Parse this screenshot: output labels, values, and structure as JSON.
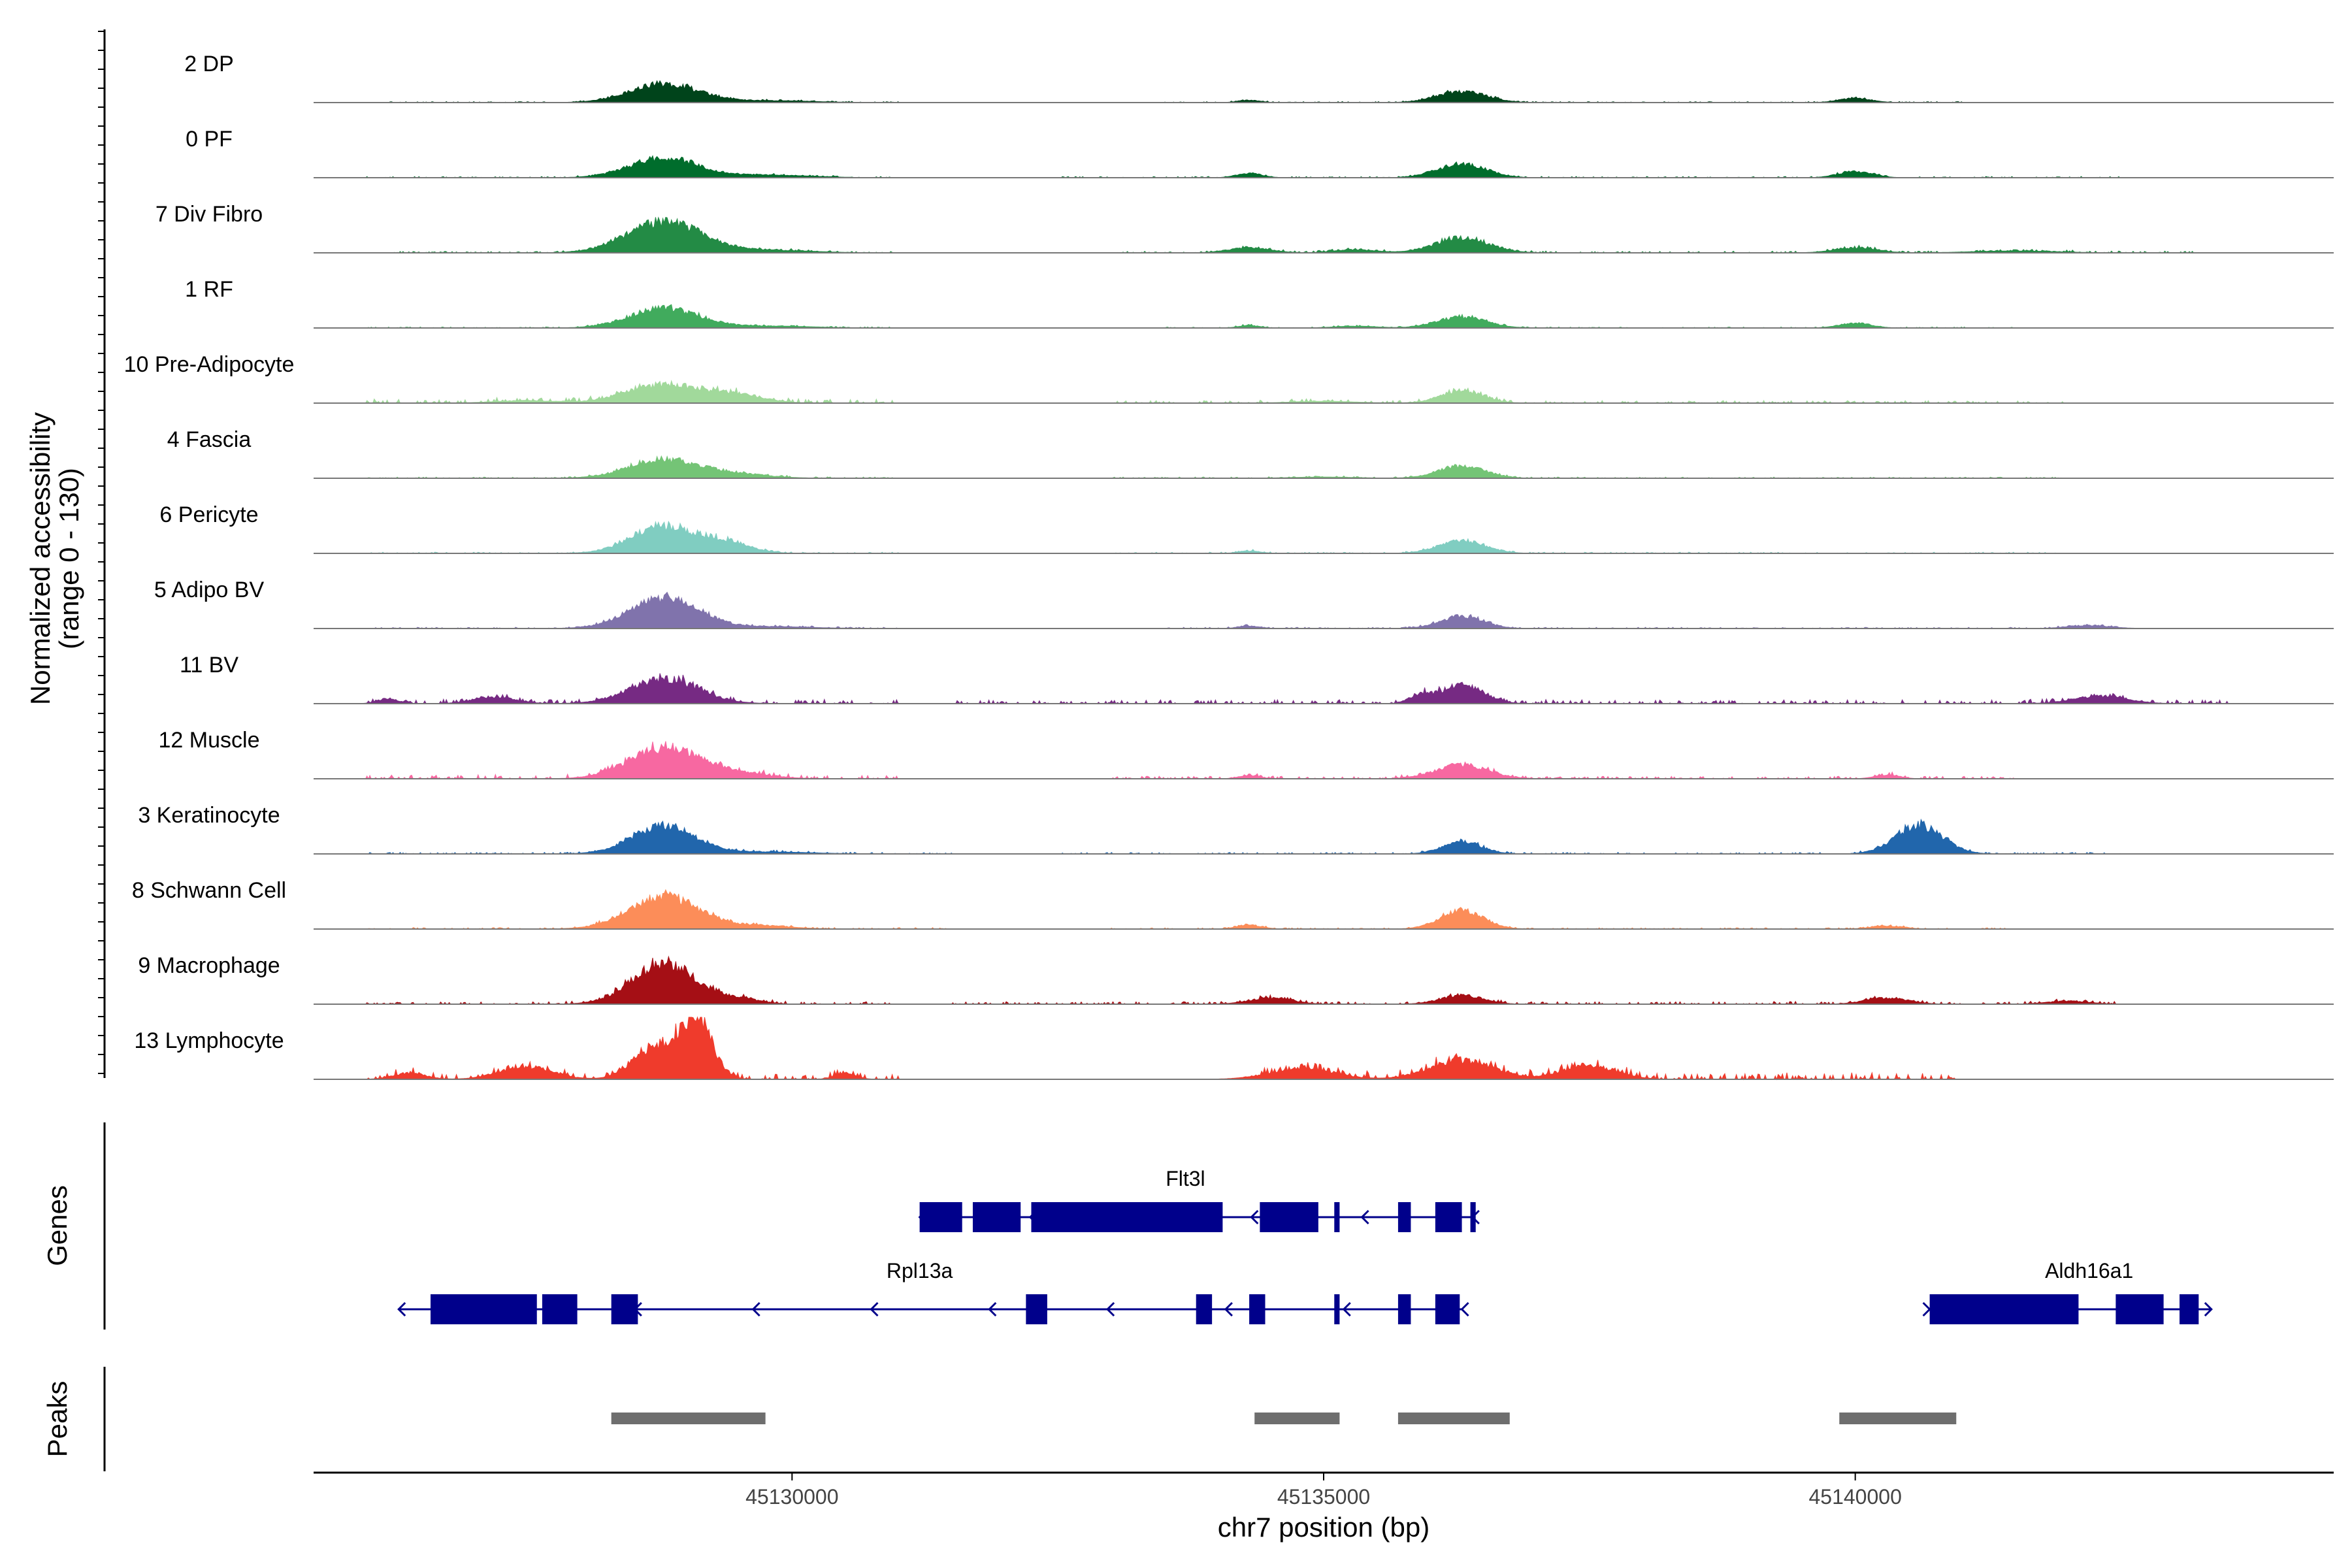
{
  "chart_data": {
    "type": "genome-browser-coverage",
    "region": {
      "chrom": "chr7",
      "start": 45125500,
      "end": 45144500
    },
    "xlabel": "chr7 position (bp)",
    "x_ticks": [
      45130000,
      45135000,
      45140000
    ],
    "ylabel_line1": "Normalized accessibility",
    "ylabel_line2": "(range 0 - 130)",
    "y_range": [
      0,
      130
    ],
    "panel_labels": {
      "genes": "Genes",
      "peaks": "Peaks"
    },
    "series": [
      {
        "name": "2 DP",
        "color": "#00441b",
        "peaks": [
          [
            45128800,
            0.3,
            320
          ],
          [
            45129800,
            0.03,
            400
          ],
          [
            45134300,
            0.04,
            100
          ],
          [
            45136300,
            0.18,
            230
          ],
          [
            45140000,
            0.07,
            150
          ]
        ],
        "noise": [
          [
            45126200,
            45131000,
            0.008
          ],
          [
            45133500,
            45141000,
            0.008
          ]
        ]
      },
      {
        "name": "0 PF",
        "color": "#006d2c",
        "peaks": [
          [
            45128800,
            0.32,
            320
          ],
          [
            45129800,
            0.04,
            400
          ],
          [
            45134300,
            0.07,
            120
          ],
          [
            45136300,
            0.22,
            230
          ],
          [
            45140000,
            0.1,
            160
          ]
        ],
        "noise": [
          [
            45126000,
            45131000,
            0.01
          ],
          [
            45132500,
            45142500,
            0.01
          ]
        ]
      },
      {
        "name": "7 Div Fibro",
        "color": "#238b45",
        "peaks": [
          [
            45128800,
            0.5,
            350
          ],
          [
            45129800,
            0.04,
            400
          ],
          [
            45134300,
            0.08,
            200
          ],
          [
            45135300,
            0.05,
            200
          ],
          [
            45136300,
            0.24,
            250
          ],
          [
            45140000,
            0.08,
            200
          ],
          [
            45141500,
            0.03,
            400
          ]
        ],
        "noise": [
          [
            45126200,
            45131000,
            0.012
          ],
          [
            45133000,
            45143200,
            0.014
          ]
        ]
      },
      {
        "name": "1 RF",
        "color": "#41ab5d",
        "peaks": [
          [
            45128800,
            0.32,
            320
          ],
          [
            45129800,
            0.03,
            400
          ],
          [
            45134300,
            0.04,
            100
          ],
          [
            45135300,
            0.03,
            200
          ],
          [
            45136300,
            0.18,
            230
          ],
          [
            45140000,
            0.08,
            150
          ]
        ],
        "noise": [
          [
            45126000,
            45131000,
            0.008
          ],
          [
            45133500,
            45141500,
            0.008
          ]
        ]
      },
      {
        "name": "10 Pre-Adipocyte",
        "color": "#a1d99b",
        "peaks": [
          [
            45128800,
            0.3,
            350
          ],
          [
            45129500,
            0.12,
            250
          ],
          [
            45127500,
            0.04,
            300
          ],
          [
            45136300,
            0.2,
            200
          ],
          [
            45135000,
            0.03,
            300
          ]
        ],
        "noise": [
          [
            45126000,
            45131000,
            0.03
          ],
          [
            45133000,
            45142000,
            0.02
          ]
        ]
      },
      {
        "name": "4 Fascia",
        "color": "#74c476",
        "peaks": [
          [
            45128800,
            0.3,
            330
          ],
          [
            45129500,
            0.06,
            300
          ],
          [
            45136300,
            0.2,
            220
          ],
          [
            45135000,
            0.02,
            300
          ]
        ],
        "noise": [
          [
            45126000,
            45131000,
            0.01
          ],
          [
            45133000,
            45142000,
            0.01
          ]
        ]
      },
      {
        "name": "6 Pericyte",
        "color": "#80cdc1",
        "peaks": [
          [
            45128800,
            0.44,
            300
          ],
          [
            45129400,
            0.16,
            220
          ],
          [
            45134300,
            0.04,
            100
          ],
          [
            45136300,
            0.2,
            220
          ]
        ],
        "noise": [
          [
            45126000,
            45131000,
            0.01
          ],
          [
            45133000,
            45142000,
            0.01
          ]
        ]
      },
      {
        "name": "5 Adipo BV",
        "color": "#8073ac",
        "peaks": [
          [
            45128800,
            0.5,
            320
          ],
          [
            45129800,
            0.03,
            400
          ],
          [
            45134300,
            0.04,
            100
          ],
          [
            45136300,
            0.2,
            200
          ],
          [
            45142200,
            0.05,
            200
          ]
        ],
        "noise": [
          [
            45126000,
            45131000,
            0.01
          ],
          [
            45133500,
            45142500,
            0.01
          ]
        ]
      },
      {
        "name": "11 BV",
        "color": "#762a83",
        "peaks": [
          [
            45128800,
            0.4,
            320
          ],
          [
            45126200,
            0.08,
            100
          ],
          [
            45127200,
            0.1,
            200
          ],
          [
            45136300,
            0.3,
            200
          ],
          [
            45135900,
            0.12,
            100
          ],
          [
            45142300,
            0.12,
            250
          ]
        ],
        "noise": [
          [
            45126000,
            45131000,
            0.03
          ],
          [
            45131500,
            45143500,
            0.03
          ]
        ]
      },
      {
        "name": "12 Muscle",
        "color": "#f768a1",
        "peaks": [
          [
            45128800,
            0.5,
            330
          ],
          [
            45129500,
            0.08,
            300
          ],
          [
            45136300,
            0.22,
            250
          ],
          [
            45134300,
            0.05,
            100
          ],
          [
            45140300,
            0.06,
            120
          ]
        ],
        "noise": [
          [
            45126000,
            45131000,
            0.03
          ],
          [
            45133000,
            45141500,
            0.02
          ]
        ]
      },
      {
        "name": "3 Keratinocyte",
        "color": "#2166ac",
        "peaks": [
          [
            45128800,
            0.44,
            300
          ],
          [
            45129800,
            0.03,
            400
          ],
          [
            45136300,
            0.2,
            180
          ],
          [
            45140600,
            0.46,
            220
          ]
        ],
        "noise": [
          [
            45126000,
            45131500,
            0.012
          ],
          [
            45132500,
            45142500,
            0.012
          ]
        ]
      },
      {
        "name": "8 Schwann Cell",
        "color": "#fc8d59",
        "peaks": [
          [
            45128800,
            0.52,
            330
          ],
          [
            45129700,
            0.05,
            300
          ],
          [
            45134300,
            0.06,
            120
          ],
          [
            45136300,
            0.3,
            200
          ],
          [
            45140300,
            0.05,
            150
          ]
        ],
        "noise": [
          [
            45126000,
            45131500,
            0.012
          ],
          [
            45133000,
            45141500,
            0.01
          ]
        ]
      },
      {
        "name": "9 Macrophage",
        "color": "#a50f15",
        "peaks": [
          [
            45128800,
            0.66,
            300
          ],
          [
            45129500,
            0.08,
            200
          ],
          [
            45134500,
            0.1,
            200
          ],
          [
            45136300,
            0.14,
            200
          ],
          [
            45140300,
            0.1,
            200
          ],
          [
            45142000,
            0.05,
            200
          ]
        ],
        "noise": [
          [
            45126000,
            45131000,
            0.02
          ],
          [
            45131500,
            45142500,
            0.02
          ]
        ]
      },
      {
        "name": "13 Lymphocyte",
        "color": "#ef3b2c",
        "peaks": [
          [
            45128700,
            0.5,
            200
          ],
          [
            45129100,
            0.95,
            150
          ],
          [
            45127500,
            0.2,
            250
          ],
          [
            45136300,
            0.3,
            300
          ],
          [
            45137500,
            0.22,
            250
          ],
          [
            45134800,
            0.18,
            300
          ],
          [
            45130500,
            0.1,
            100
          ],
          [
            45126400,
            0.1,
            150
          ]
        ],
        "noise": [
          [
            45126000,
            45131000,
            0.04
          ],
          [
            45134400,
            45141000,
            0.05
          ]
        ]
      }
    ],
    "genes": [
      {
        "name": "Flt3l",
        "strand": "-",
        "start": 45131200,
        "end": 45136400,
        "row": 1,
        "label_pos": 45133700,
        "exons": [
          [
            45131200,
            45131600
          ],
          [
            45131700,
            45132150
          ],
          [
            45132250,
            45134050
          ],
          [
            45134400,
            45134950
          ],
          [
            45135100,
            45135150
          ],
          [
            45135700,
            45135820
          ],
          [
            45136050,
            45136300
          ],
          [
            45136380,
            45136430
          ]
        ]
      },
      {
        "name": "Rpl13a",
        "strand": "-",
        "start": 45126300,
        "end": 45136300,
        "row": 2,
        "label_pos": 45131200,
        "exons": [
          [
            45126600,
            45127600
          ],
          [
            45127650,
            45127980
          ],
          [
            45128300,
            45128550
          ],
          [
            45132200,
            45132400
          ],
          [
            45133800,
            45133950
          ],
          [
            45134300,
            45134450
          ],
          [
            45135100,
            45135150
          ],
          [
            45135700,
            45135820
          ],
          [
            45136050,
            45136280
          ]
        ]
      },
      {
        "name": "Aldh16a1",
        "strand": "+",
        "start": 45140700,
        "end": 45143350,
        "row": 2,
        "label_pos": 45142200,
        "exons": [
          [
            45140700,
            45142100
          ],
          [
            45142450,
            45142900
          ],
          [
            45143050,
            45143230
          ]
        ]
      }
    ],
    "peaks": [
      [
        45128300,
        45129750
      ],
      [
        45134350,
        45135150
      ],
      [
        45135700,
        45136750
      ],
      [
        45139850,
        45140950
      ]
    ]
  }
}
